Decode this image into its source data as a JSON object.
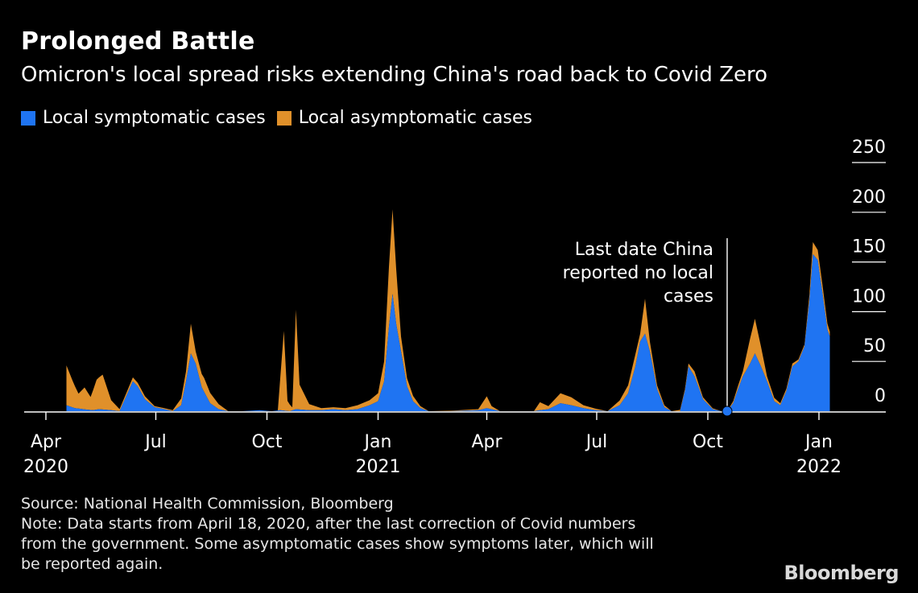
{
  "header": {
    "title": "Prolonged Battle",
    "subtitle": "Omicron's local spread risks extending China's road back to Covid Zero"
  },
  "legend": [
    {
      "label": "Local symptomatic cases",
      "color": "#1F74F2"
    },
    {
      "label": "Local asymptomatic cases",
      "color": "#E0902A"
    }
  ],
  "footer": {
    "source": "Source: National Health Commission, Bloomberg",
    "note_lines": [
      "Note: Data starts from April 18, 2020, after the last correction of Covid numbers",
      "from the government. Some asymptomatic cases show symptoms later, which will",
      "be reported again."
    ],
    "brand": "Bloomberg"
  },
  "chart_data": {
    "type": "area",
    "stacked": true,
    "y_axis": {
      "min": 0,
      "max": 250,
      "ticks": [
        0,
        50,
        100,
        150,
        200,
        250
      ],
      "position": "right"
    },
    "x_axis": {
      "start": "2020-04-01",
      "end": "2022-01-31",
      "ticks": [
        {
          "date": "2020-04-01",
          "label": "Apr",
          "year": "2020"
        },
        {
          "date": "2020-07-01",
          "label": "Jul",
          "year": ""
        },
        {
          "date": "2020-10-01",
          "label": "Oct",
          "year": ""
        },
        {
          "date": "2021-01-01",
          "label": "Jan",
          "year": "2021"
        },
        {
          "date": "2021-04-01",
          "label": "Apr",
          "year": ""
        },
        {
          "date": "2021-07-01",
          "label": "Jul",
          "year": ""
        },
        {
          "date": "2021-10-01",
          "label": "Oct",
          "year": ""
        },
        {
          "date": "2022-01-01",
          "label": "Jan",
          "year": "2022"
        }
      ]
    },
    "annotation": {
      "lines": [
        "Last date China",
        "reported no local",
        "cases"
      ],
      "date": "2021-10-17",
      "value": 0
    },
    "series": [
      {
        "name": "Local symptomatic cases",
        "color": "#1F74F2",
        "points": [
          [
            "2020-04-18",
            6
          ],
          [
            "2020-04-25",
            3
          ],
          [
            "2020-05-02",
            2
          ],
          [
            "2020-05-10",
            1
          ],
          [
            "2020-05-15",
            2
          ],
          [
            "2020-05-25",
            1
          ],
          [
            "2020-06-01",
            0
          ],
          [
            "2020-06-12",
            30
          ],
          [
            "2020-06-16",
            25
          ],
          [
            "2020-06-22",
            12
          ],
          [
            "2020-06-30",
            4
          ],
          [
            "2020-07-08",
            2
          ],
          [
            "2020-07-15",
            0
          ],
          [
            "2020-07-22",
            6
          ],
          [
            "2020-07-26",
            30
          ],
          [
            "2020-07-30",
            58
          ],
          [
            "2020-08-03",
            48
          ],
          [
            "2020-08-08",
            24
          ],
          [
            "2020-08-15",
            8
          ],
          [
            "2020-08-22",
            2
          ],
          [
            "2020-08-30",
            0
          ],
          [
            "2020-09-10",
            0
          ],
          [
            "2020-09-25",
            1
          ],
          [
            "2020-10-05",
            0
          ],
          [
            "2020-10-12",
            1
          ],
          [
            "2020-10-20",
            0
          ],
          [
            "2020-10-25",
            2
          ],
          [
            "2020-11-05",
            1
          ],
          [
            "2020-11-15",
            1
          ],
          [
            "2020-11-25",
            2
          ],
          [
            "2020-12-05",
            1
          ],
          [
            "2020-12-15",
            2
          ],
          [
            "2020-12-25",
            6
          ],
          [
            "2021-01-01",
            10
          ],
          [
            "2021-01-06",
            30
          ],
          [
            "2021-01-10",
            85
          ],
          [
            "2021-01-13",
            118
          ],
          [
            "2021-01-16",
            88
          ],
          [
            "2021-01-20",
            60
          ],
          [
            "2021-01-25",
            25
          ],
          [
            "2021-01-30",
            10
          ],
          [
            "2021-02-05",
            3
          ],
          [
            "2021-02-12",
            0
          ],
          [
            "2021-03-01",
            0
          ],
          [
            "2021-03-25",
            1
          ],
          [
            "2021-04-01",
            3
          ],
          [
            "2021-04-05",
            2
          ],
          [
            "2021-04-12",
            0
          ],
          [
            "2021-05-10",
            0
          ],
          [
            "2021-05-15",
            1
          ],
          [
            "2021-05-22",
            2
          ],
          [
            "2021-06-01",
            8
          ],
          [
            "2021-06-10",
            6
          ],
          [
            "2021-06-20",
            3
          ],
          [
            "2021-06-30",
            1
          ],
          [
            "2021-07-10",
            0
          ],
          [
            "2021-07-20",
            6
          ],
          [
            "2021-07-27",
            18
          ],
          [
            "2021-08-02",
            45
          ],
          [
            "2021-08-06",
            70
          ],
          [
            "2021-08-10",
            78
          ],
          [
            "2021-08-14",
            60
          ],
          [
            "2021-08-20",
            22
          ],
          [
            "2021-08-26",
            4
          ],
          [
            "2021-09-01",
            0
          ],
          [
            "2021-09-08",
            0
          ],
          [
            "2021-09-12",
            20
          ],
          [
            "2021-09-15",
            45
          ],
          [
            "2021-09-20",
            35
          ],
          [
            "2021-09-27",
            12
          ],
          [
            "2021-10-05",
            2
          ],
          [
            "2021-10-12",
            0
          ],
          [
            "2021-10-17",
            0
          ],
          [
            "2021-10-22",
            8
          ],
          [
            "2021-10-26",
            22
          ],
          [
            "2021-10-30",
            35
          ],
          [
            "2021-11-05",
            48
          ],
          [
            "2021-11-09",
            58
          ],
          [
            "2021-11-14",
            45
          ],
          [
            "2021-11-19",
            30
          ],
          [
            "2021-11-25",
            10
          ],
          [
            "2021-11-30",
            6
          ],
          [
            "2021-12-05",
            20
          ],
          [
            "2021-12-10",
            45
          ],
          [
            "2021-12-15",
            50
          ],
          [
            "2021-12-20",
            65
          ],
          [
            "2021-12-24",
            110
          ],
          [
            "2021-12-27",
            158
          ],
          [
            "2021-12-31",
            152
          ],
          [
            "2022-01-04",
            118
          ],
          [
            "2022-01-08",
            82
          ],
          [
            "2022-01-10",
            75
          ]
        ]
      },
      {
        "name": "Local asymptomatic cases",
        "color": "#E0902A",
        "points": [
          [
            "2020-04-18",
            40
          ],
          [
            "2020-04-23",
            27
          ],
          [
            "2020-04-28",
            15
          ],
          [
            "2020-05-03",
            22
          ],
          [
            "2020-05-08",
            13
          ],
          [
            "2020-05-13",
            30
          ],
          [
            "2020-05-18",
            35
          ],
          [
            "2020-05-25",
            10
          ],
          [
            "2020-06-01",
            2
          ],
          [
            "2020-06-12",
            4
          ],
          [
            "2020-06-22",
            3
          ],
          [
            "2020-06-30",
            1
          ],
          [
            "2020-07-15",
            1
          ],
          [
            "2020-07-26",
            10
          ],
          [
            "2020-07-30",
            30
          ],
          [
            "2020-08-03",
            12
          ],
          [
            "2020-08-10",
            14
          ],
          [
            "2020-08-22",
            5
          ],
          [
            "2020-08-30",
            0
          ],
          [
            "2020-10-10",
            0
          ],
          [
            "2020-10-15",
            80
          ],
          [
            "2020-10-18",
            10
          ],
          [
            "2020-10-22",
            3
          ],
          [
            "2020-10-25",
            100
          ],
          [
            "2020-10-28",
            25
          ],
          [
            "2020-11-05",
            6
          ],
          [
            "2020-11-15",
            2
          ],
          [
            "2020-12-05",
            2
          ],
          [
            "2020-12-15",
            4
          ],
          [
            "2020-12-25",
            5
          ],
          [
            "2021-01-01",
            8
          ],
          [
            "2021-01-06",
            20
          ],
          [
            "2021-01-10",
            60
          ],
          [
            "2021-01-13",
            85
          ],
          [
            "2021-01-16",
            55
          ],
          [
            "2021-01-20",
            15
          ],
          [
            "2021-01-25",
            8
          ],
          [
            "2021-02-05",
            2
          ],
          [
            "2021-02-12",
            0
          ],
          [
            "2021-03-25",
            1
          ],
          [
            "2021-04-01",
            12
          ],
          [
            "2021-04-05",
            3
          ],
          [
            "2021-04-12",
            0
          ],
          [
            "2021-05-10",
            0
          ],
          [
            "2021-05-15",
            8
          ],
          [
            "2021-05-22",
            3
          ],
          [
            "2021-06-01",
            10
          ],
          [
            "2021-06-10",
            8
          ],
          [
            "2021-06-20",
            3
          ],
          [
            "2021-07-10",
            0
          ],
          [
            "2021-07-27",
            8
          ],
          [
            "2021-08-02",
            12
          ],
          [
            "2021-08-06",
            8
          ],
          [
            "2021-08-10",
            35
          ],
          [
            "2021-08-14",
            10
          ],
          [
            "2021-08-20",
            4
          ],
          [
            "2021-09-01",
            0
          ],
          [
            "2021-09-12",
            2
          ],
          [
            "2021-09-15",
            3
          ],
          [
            "2021-09-20",
            5
          ],
          [
            "2021-09-27",
            2
          ],
          [
            "2021-10-12",
            0
          ],
          [
            "2021-10-17",
            0
          ],
          [
            "2021-10-22",
            2
          ],
          [
            "2021-10-30",
            5
          ],
          [
            "2021-11-05",
            25
          ],
          [
            "2021-11-09",
            35
          ],
          [
            "2021-11-14",
            20
          ],
          [
            "2021-11-19",
            5
          ],
          [
            "2021-11-30",
            2
          ],
          [
            "2021-12-10",
            3
          ],
          [
            "2021-12-15",
            2
          ],
          [
            "2021-12-20",
            2
          ],
          [
            "2021-12-24",
            6
          ],
          [
            "2021-12-27",
            12
          ],
          [
            "2021-12-31",
            10
          ],
          [
            "2022-01-04",
            8
          ],
          [
            "2022-01-08",
            6
          ],
          [
            "2022-01-10",
            5
          ]
        ]
      }
    ]
  }
}
